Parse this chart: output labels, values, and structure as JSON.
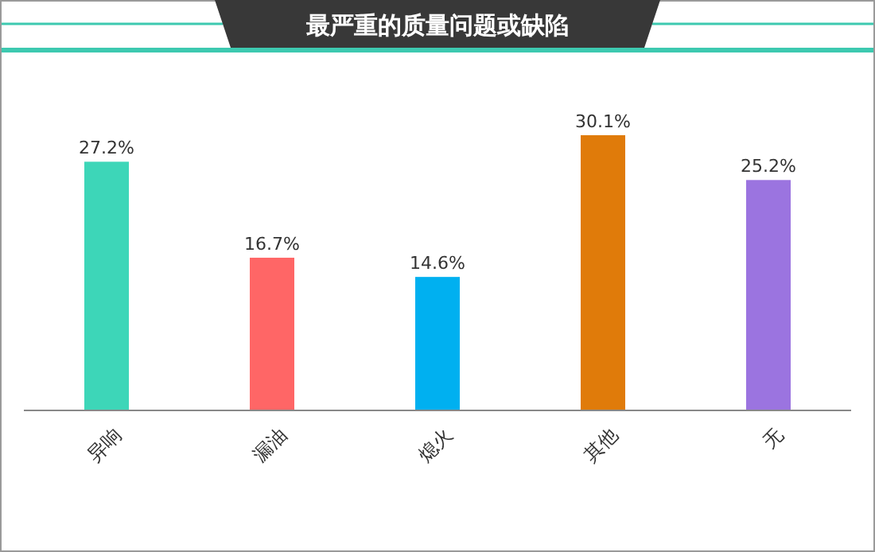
{
  "chart_data": {
    "type": "bar",
    "title": "最严重的质量问题或缺陷",
    "categories": [
      "异响",
      "漏油",
      "熄火",
      "其他",
      "无"
    ],
    "values": [
      27.2,
      16.7,
      14.6,
      30.1,
      25.2
    ],
    "colors": [
      "#3dd6b8",
      "#ff6666",
      "#00b0f0",
      "#e07b0a",
      "#9b74e0"
    ],
    "value_labels": [
      "27.2%",
      "16.7%",
      "14.6%",
      "30.1%",
      "25.2%"
    ]
  }
}
